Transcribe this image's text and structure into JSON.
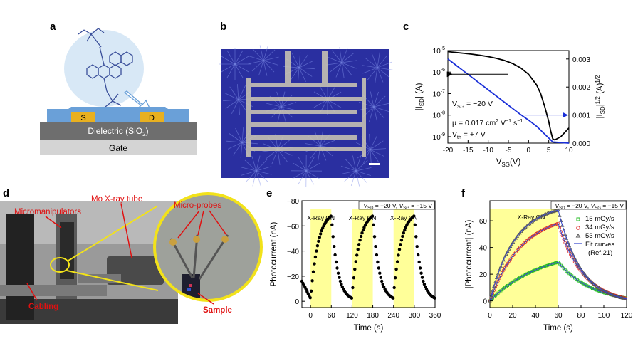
{
  "panels": {
    "a": {
      "letter": "a",
      "electrode_s": "S",
      "electrode_d": "D",
      "dielectric": "Dielectric (SiO",
      "dielectric_sub": "2",
      "dielectric_close": ")",
      "gate": "Gate",
      "colors": {
        "semiconductor": "#6aa0d8",
        "electrode": "#e8b020",
        "dielectric": "#6e6e6e",
        "gate": "#d4d4d4",
        "bubble": "#d8e8f6",
        "molecule": "#3a4f9a"
      }
    },
    "b": {
      "letter": "b",
      "colors": {
        "film": "#2a2fa0",
        "electrode": "#cfcab4"
      }
    },
    "c": {
      "letter": "c"
    },
    "d": {
      "letter": "d",
      "label_micromanipulators": "Micromanipulators",
      "label_xray_tube": "Mo X-ray tube",
      "label_microprobes": "Micro-probes",
      "label_cabling": "Cabling",
      "label_sample": "Sample",
      "colors": {
        "label": "#e01010",
        "zoom_ring": "#f2e21a"
      }
    },
    "e": {
      "letter": "e"
    },
    "f": {
      "letter": "f"
    }
  },
  "chart_data": [
    {
      "id": "c",
      "type": "line",
      "xlabel_main": "V",
      "xlabel_sub": "SG",
      "xlabel_tail": "(V)",
      "ylabel_left": "|I_SD| (A)",
      "ylabel_right": "|I_SD|^1/2 (A)^1/2",
      "ylabel_left_main": "|I",
      "ylabel_left_sub": "SD",
      "ylabel_left_tail": "| (A)",
      "ylabel_right_main": "|I",
      "ylabel_right_sub": "SD",
      "ylabel_right_tail": "|",
      "ylabel_right_sup": "1/2",
      "ylabel_right_unit": " (A)",
      "ylabel_right_unit_sup": "1/2",
      "xlim": [
        -20,
        10
      ],
      "xticks": [
        -20,
        -15,
        -10,
        -5,
        0,
        5,
        10
      ],
      "ylim_left_log10": [
        -9.3,
        -5
      ],
      "yticks_left_base": "10",
      "yticks_left_exp": [
        "-9",
        "-8",
        "-7",
        "-6",
        "-5"
      ],
      "ylim_right": [
        0,
        0.0033
      ],
      "yticks_right": [
        "0.000",
        "0.001",
        "0.002",
        "0.003"
      ],
      "yticks_right_vals": [
        0,
        0.001,
        0.002,
        0.003
      ],
      "annotations": {
        "vsg": "V",
        "vsg_sub": "SG",
        "vsg_val": " = −20 V",
        "mu": "μ = 0.017 cm",
        "mu_sup1": "2",
        "mu_mid": " V",
        "mu_sup2": "−1",
        "mu_tail": " s",
        "mu_sup3": "−1",
        "vth": "V",
        "vth_sub": "th",
        "vth_val": " = +7 V"
      },
      "series": [
        {
          "axis": "left",
          "color": "#000000",
          "x": [
            -20,
            -18,
            -16,
            -14,
            -12,
            -10,
            -8,
            -6,
            -4,
            -2,
            0,
            2,
            3,
            4,
            5,
            5.5,
            6,
            6.5,
            7,
            8,
            9,
            10
          ],
          "log10_y": [
            -5.05,
            -5.09,
            -5.13,
            -5.17,
            -5.22,
            -5.28,
            -5.36,
            -5.46,
            -5.6,
            -5.8,
            -6.1,
            -6.6,
            -7.0,
            -7.6,
            -8.3,
            -8.75,
            -9.1,
            -9.15,
            -9.1,
            -9.0,
            -8.8,
            -8.6
          ]
        },
        {
          "axis": "right",
          "color": "#1a2fd8",
          "x": [
            -20,
            -18,
            -16,
            -14,
            -12,
            -10,
            -8,
            -6,
            -4,
            -2,
            0,
            2,
            4,
            5,
            6,
            7,
            8,
            9,
            10
          ],
          "y": [
            0.003,
            0.00278,
            0.00256,
            0.00234,
            0.00212,
            0.0019,
            0.00168,
            0.00146,
            0.00124,
            0.00102,
            0.00082,
            0.0006,
            0.00032,
            0.00018,
            4e-05,
            3e-05,
            2e-05,
            1e-05,
            0.0
          ]
        }
      ],
      "arrows": [
        {
          "axis": "left",
          "from_x": -5,
          "to_x": -19,
          "log10_y": -6.1
        },
        {
          "axis": "right",
          "from_x": -1,
          "to_x": 10,
          "y": 0.001
        }
      ]
    },
    {
      "id": "e",
      "type": "scatter",
      "condition": "V_SD = −20 V, V_SG = −15 V",
      "cond_v1": "V",
      "cond_s1": "SD",
      "cond_t1": " = −20 V, ",
      "cond_v2": "V",
      "cond_s2": "SG",
      "cond_t2": " = −15 V",
      "xlabel": "Time (s)",
      "ylabel": "Photocurrent (nA)",
      "xlim": [
        -25,
        360
      ],
      "ylim": [
        5,
        -80
      ],
      "xticks": [
        0,
        60,
        120,
        180,
        240,
        300,
        360
      ],
      "yticks": [
        0,
        -20,
        -40,
        -60,
        -80
      ],
      "ytick_labels": [
        "0",
        "−20",
        "−40",
        "−60",
        "−80"
      ],
      "xray_label": "X-Ray ON",
      "xray_windows": [
        [
          0,
          60
        ],
        [
          120,
          180
        ],
        [
          240,
          300
        ]
      ],
      "marker_color": "#000000",
      "window_color": "#ffff99"
    },
    {
      "id": "f",
      "type": "scatter",
      "condition": "V_SD = −20 V, V_SG = −15 V",
      "cond_v1": "V",
      "cond_s1": "SD",
      "cond_t1": " = −20 V, ",
      "cond_v2": "V",
      "cond_s2": "SG",
      "cond_t2": " = −15 V",
      "xlabel": "Time (s)",
      "ylabel": "|Photocurrent| (nA)",
      "xlim": [
        0,
        120
      ],
      "ylim": [
        -5,
        75
      ],
      "xticks": [
        0,
        20,
        40,
        60,
        80,
        100,
        120
      ],
      "yticks": [
        0,
        20,
        40,
        60
      ],
      "xray_label": "X-Ray ON",
      "xray_window": [
        0,
        60
      ],
      "window_color": "#ffff99",
      "legend_position": "right",
      "series": [
        {
          "name": "15 mGy/s",
          "color": "#22bb22",
          "marker": "square",
          "peak": 29,
          "tau_rise": 45,
          "tau_fall": 30
        },
        {
          "name": "34 mGy/s",
          "color": "#dd2222",
          "marker": "circle",
          "peak": 58,
          "tau_rise": 28,
          "tau_fall": 22
        },
        {
          "name": "53 mGy/s",
          "color": "#555555",
          "marker": "triangle",
          "peak": 68,
          "tau_rise": 22,
          "tau_fall": 20
        }
      ],
      "fit_label": "Fit curves",
      "fit_ref": "(Ref.21)",
      "fit_color": "#3344cc"
    }
  ]
}
